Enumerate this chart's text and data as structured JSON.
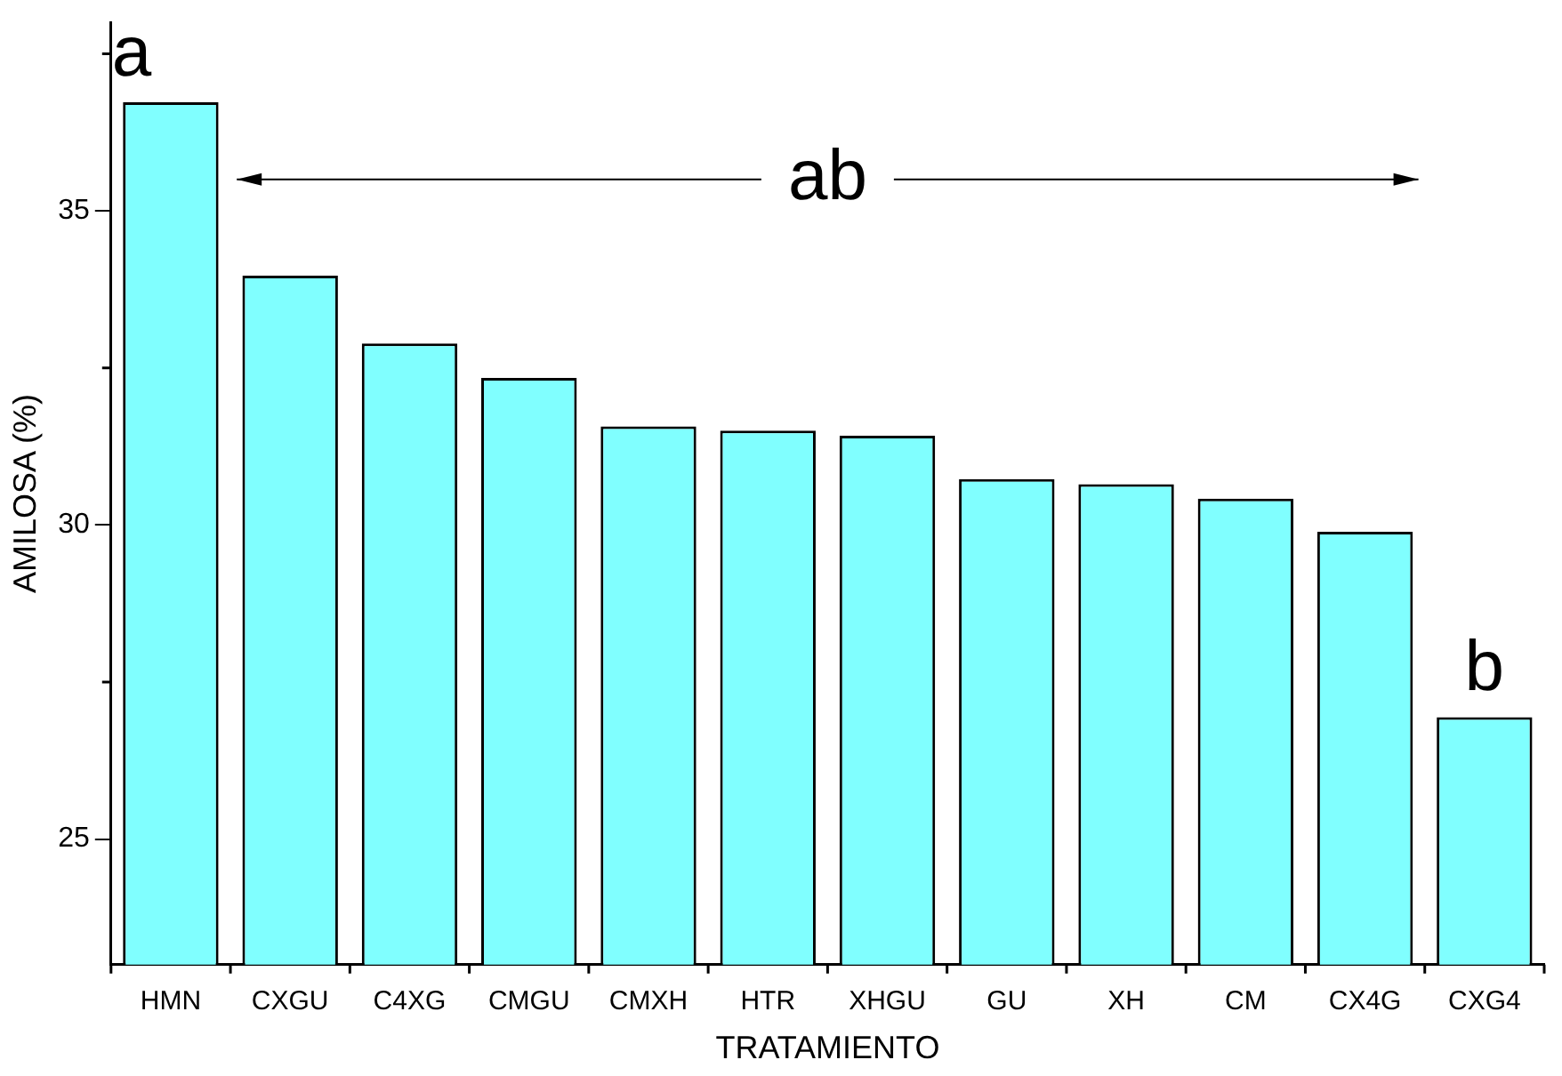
{
  "chart_data": {
    "type": "bar",
    "xlabel": "TRATAMIENTO",
    "ylabel": "AMILOSA (%)",
    "categories": [
      "HMN",
      "CXGU",
      "C4XG",
      "CMGU",
      "CMXH",
      "HTR",
      "XHGU",
      "GU",
      "XH",
      "CM",
      "CX4G",
      "CXG4"
    ],
    "values": [
      36.73,
      33.97,
      32.89,
      32.34,
      31.57,
      31.5,
      31.42,
      30.73,
      30.65,
      30.42,
      29.89,
      26.94
    ],
    "color": "#80ffff",
    "ylim": [
      23,
      38
    ],
    "yticks": [
      25,
      30,
      35
    ],
    "grid": false,
    "legend": false,
    "annotations": [
      "a",
      "ab",
      "b"
    ]
  }
}
